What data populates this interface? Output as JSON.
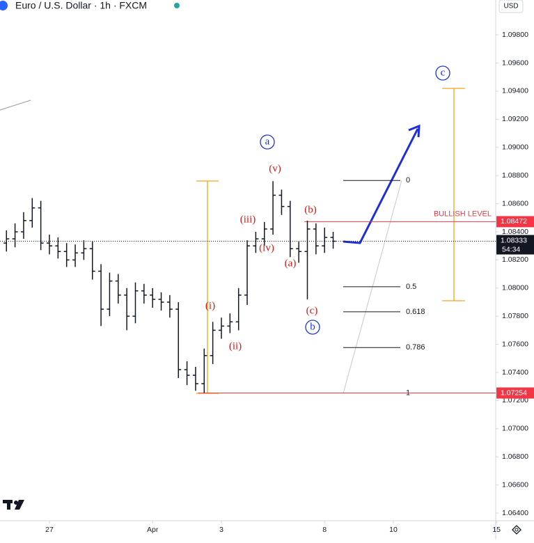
{
  "header": {
    "title": "Euro / U.S. Dollar · 1h · FXCM",
    "currency": "USD"
  },
  "chart_data": {
    "type": "ohlc",
    "x": [
      -1.25,
      -1.0,
      -0.75,
      -0.5,
      -0.25,
      0.0,
      0.25,
      0.5,
      0.75,
      1.0,
      1.25,
      1.5,
      1.75,
      2.0,
      2.25,
      2.5,
      2.75,
      3.0,
      3.25,
      3.5,
      3.75,
      4.0,
      4.25,
      4.5,
      4.75,
      5.0,
      5.25,
      5.5,
      5.75,
      6.0,
      6.25,
      6.5,
      6.75,
      7.0,
      7.25,
      7.5,
      7.75,
      8.0,
      8.25
    ],
    "open": [
      1.0832,
      1.0835,
      1.084,
      1.0848,
      1.0857,
      1.0832,
      1.083,
      1.0826,
      1.082,
      1.0825,
      1.0828,
      1.0812,
      1.0785,
      1.0805,
      1.0795,
      1.078,
      1.0798,
      1.0795,
      1.0792,
      1.079,
      1.0785,
      1.0742,
      1.0738,
      1.0732,
      1.0752,
      1.077,
      1.0773,
      1.0776,
      1.0795,
      1.083,
      1.0835,
      1.0842,
      1.0866,
      1.0858,
      1.0828,
      1.0826,
      1.0842,
      1.083,
      1.0836
    ],
    "high": [
      1.0841,
      1.0846,
      1.0854,
      1.0864,
      1.0862,
      1.0838,
      1.0836,
      1.0832,
      1.0831,
      1.0834,
      1.0833,
      1.0817,
      1.0811,
      1.081,
      1.08,
      1.0804,
      1.0803,
      1.08,
      1.0797,
      1.0795,
      1.079,
      1.0748,
      1.0744,
      1.0757,
      1.0776,
      1.0779,
      1.0782,
      1.08,
      1.0834,
      1.084,
      1.0847,
      1.0876,
      1.087,
      1.0862,
      1.0833,
      1.0848,
      1.0846,
      1.0843,
      1.084
    ],
    "low": [
      1.0826,
      1.0829,
      1.0835,
      1.0843,
      1.0827,
      1.0824,
      1.0821,
      1.0815,
      1.0815,
      1.082,
      1.0806,
      1.0773,
      1.078,
      1.0789,
      1.077,
      1.0775,
      1.0789,
      1.0786,
      1.0784,
      1.0779,
      1.0736,
      1.0731,
      1.0727,
      1.07254,
      1.0746,
      1.0764,
      1.0768,
      1.077,
      1.0788,
      1.0825,
      1.083,
      1.0838,
      1.0852,
      1.0822,
      1.0818,
      1.0792,
      1.0824,
      1.0825,
      1.0828
    ],
    "close": [
      1.0835,
      1.084,
      1.0848,
      1.0857,
      1.0832,
      1.083,
      1.0826,
      1.082,
      1.0825,
      1.0828,
      1.0812,
      1.0785,
      1.0805,
      1.0795,
      1.078,
      1.0798,
      1.0795,
      1.0792,
      1.079,
      1.0785,
      1.0742,
      1.0738,
      1.0732,
      1.0752,
      1.077,
      1.0773,
      1.0776,
      1.0795,
      1.083,
      1.0835,
      1.0842,
      1.0866,
      1.0858,
      1.0828,
      1.0826,
      1.0842,
      1.083,
      1.0836,
      1.08333
    ],
    "color": "#131722",
    "xlim": [
      -1.437,
      12.976
    ],
    "xticks": [
      {
        "value": 0,
        "label": "27"
      },
      {
        "value": 3,
        "label": "Apr"
      },
      {
        "value": 5,
        "label": "3"
      },
      {
        "value": 8,
        "label": "8"
      },
      {
        "value": 10,
        "label": "10"
      },
      {
        "value": 13,
        "label": "15"
      }
    ],
    "ylim": [
      1.06346,
      1.10048
    ],
    "yticks": [
      {
        "value": 1.064,
        "label": "1.06400"
      },
      {
        "value": 1.066,
        "label": "1.06600"
      },
      {
        "value": 1.068,
        "label": "1.06800"
      },
      {
        "value": 1.07,
        "label": "1.07000"
      },
      {
        "value": 1.072,
        "label": "1.07200"
      },
      {
        "value": 1.074,
        "label": "1.07400"
      },
      {
        "value": 1.076,
        "label": "1.07600"
      },
      {
        "value": 1.078,
        "label": "1.07800"
      },
      {
        "value": 1.08,
        "label": "1.08000"
      },
      {
        "value": 1.082,
        "label": "1.08200"
      },
      {
        "value": 1.084,
        "label": "1.08400"
      },
      {
        "value": 1.086,
        "label": "1.08600"
      },
      {
        "value": 1.088,
        "label": "1.08800"
      },
      {
        "value": 1.09,
        "label": "1.09000"
      },
      {
        "value": 1.092,
        "label": "1.09200"
      },
      {
        "value": 1.094,
        "label": "1.09400"
      },
      {
        "value": 1.096,
        "label": "1.09600"
      },
      {
        "value": 1.098,
        "label": "1.09800"
      }
    ],
    "grid": false,
    "last_price": {
      "value": 1.08333,
      "countdown": "54:34"
    },
    "levels": [
      {
        "name": "BULLISH LEVEL",
        "value": 1.08472,
        "color": "#f23645"
      },
      {
        "value": 1.07254,
        "color": "#f23645"
      }
    ],
    "fib": {
      "high": 1.08765,
      "low": 1.07254,
      "levels": [
        0,
        0.5,
        0.618,
        0.786,
        1
      ]
    },
    "annotations": [
      {
        "text": "a",
        "color": "#1f2fd8"
      },
      {
        "text": "(v)",
        "color": "#e0140f"
      },
      {
        "text": "(b)",
        "color": "#e0140f"
      },
      {
        "text": "(iii)",
        "color": "#e0140f"
      },
      {
        "text": "(iv)",
        "color": "#e0140f"
      },
      {
        "text": "(a)",
        "color": "#e0140f"
      },
      {
        "text": "(c)",
        "color": "#e0140f"
      },
      {
        "text": "b",
        "color": "#1f2fd8"
      },
      {
        "text": "(i)",
        "color": "#e0140f"
      },
      {
        "text": "(ii)",
        "color": "#e0140f"
      },
      {
        "text": "c",
        "color": "#1f2fd8"
      }
    ]
  }
}
